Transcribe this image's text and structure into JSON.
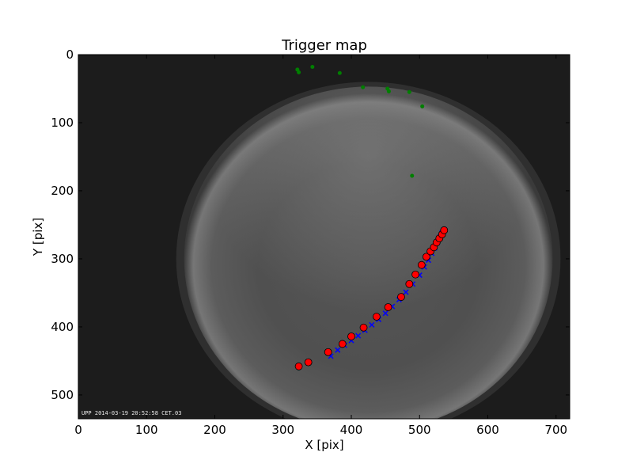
{
  "chart_data": {
    "type": "scatter",
    "title": "Trigger map",
    "xlabel": "X [pix]",
    "ylabel": "Y [pix]",
    "xlim": [
      0,
      720
    ],
    "ylim": [
      535,
      0
    ],
    "grid": false,
    "x_ticks": [
      0,
      100,
      200,
      300,
      400,
      500,
      600,
      700
    ],
    "y_ticks": [
      0,
      100,
      200,
      300,
      400,
      500
    ],
    "background_image": {
      "description_free": true,
      "timestamp_text": "UPP 2014-03-19 20:52:58 CET.03",
      "fisheye_center": [
        425,
        300
      ],
      "fisheye_radius": [
        270,
        253
      ]
    },
    "colors": {
      "green": "#007f00",
      "blue": "#0000ff",
      "red": "#ff0000",
      "background": "#1c1c1c"
    },
    "series": [
      {
        "marker": "green-dot",
        "x": [
          321,
          323,
          343,
          383,
          417,
          453,
          455,
          485,
          504,
          489
        ],
        "y": [
          22,
          26,
          18,
          27,
          48,
          50,
          54,
          55,
          76,
          178
        ]
      },
      {
        "marker": "blue-x",
        "x": [
          370,
          380,
          390,
          400,
          410,
          420,
          430,
          440,
          450,
          460,
          470,
          480,
          490,
          500,
          507,
          513,
          518,
          522,
          526,
          530,
          533,
          536
        ],
        "y": [
          443,
          434,
          427,
          420,
          413,
          405,
          397,
          389,
          380,
          370,
          360,
          349,
          337,
          324,
          312,
          302,
          292,
          284,
          276,
          268,
          262,
          257
        ]
      },
      {
        "marker": "red-circle",
        "x": [
          323,
          337,
          366,
          387,
          400,
          418,
          437,
          454,
          473,
          485,
          494,
          503,
          510,
          516,
          521,
          525,
          529,
          533,
          536
        ],
        "y": [
          458,
          452,
          437,
          425,
          414,
          401,
          385,
          371,
          356,
          337,
          323,
          309,
          297,
          289,
          283,
          276,
          270,
          264,
          258
        ]
      }
    ]
  }
}
